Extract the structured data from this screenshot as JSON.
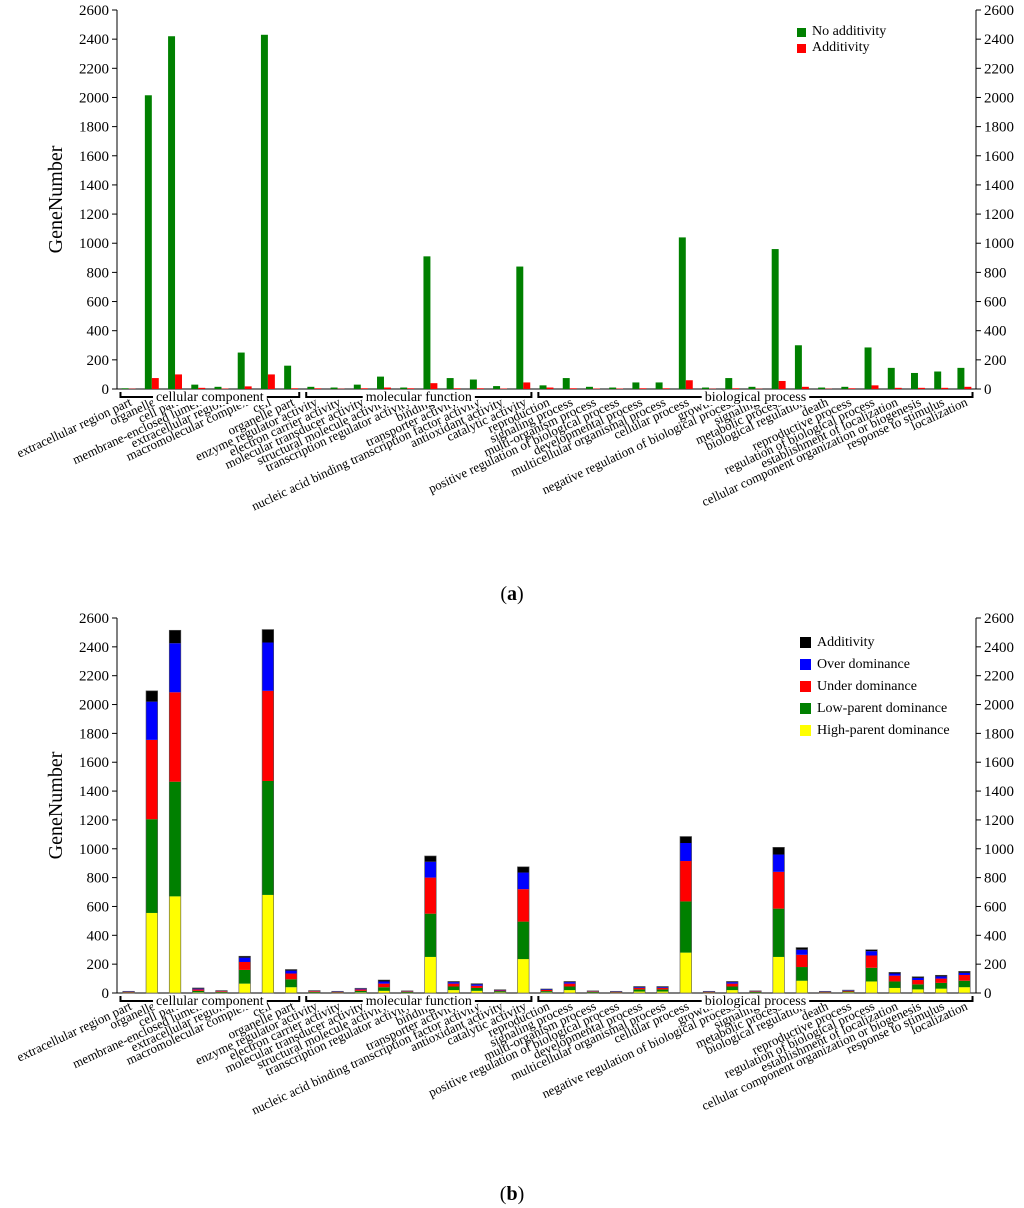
{
  "categories": [
    "extracellular region part",
    "organelle",
    "cell part",
    "membrane-enclosed lumen",
    "extracellular region",
    "macromolecular complex",
    "cell",
    "organelle part",
    "enzyme regulator activity",
    "electron carrier activity",
    "molecular transducer activity",
    "structural molecule activity",
    "transcription regulator activity",
    "binding",
    "transporter activity",
    "nucleic acid binding transcription factor activity",
    "antioxidant activity",
    "catalytic activity",
    "reproduction",
    "signaling process",
    "multi-organism process",
    "positive regulation of biological process",
    "developmental process",
    "multicellular organismal process",
    "cellular process",
    "growth",
    "negative regulation of biological process",
    "signaling",
    "metabolic process",
    "biological regulation",
    "death",
    "reproductive process",
    "regulation of biological process",
    "establishment of localization",
    "cellular component organization or biogenesis",
    "response to stimulus",
    "localization"
  ],
  "groups": [
    {
      "label": "cellular component",
      "start": 0,
      "end": 7
    },
    {
      "label": "molecular function",
      "start": 8,
      "end": 17
    },
    {
      "label": "biological process",
      "start": 18,
      "end": 36
    }
  ],
  "chart_data": [
    {
      "type": "bar",
      "panel": "a",
      "caption_letter": "a",
      "ylabel": "GeneNumber",
      "ylim": [
        0,
        2600
      ],
      "yticks": [
        0,
        200,
        400,
        600,
        800,
        1000,
        1200,
        1400,
        1600,
        1800,
        2000,
        2200,
        2400,
        2600
      ],
      "legend_position": "top-right",
      "series": [
        {
          "name": "No additivity",
          "color": "#008000",
          "values": [
            5,
            2015,
            2420,
            30,
            15,
            250,
            2430,
            160,
            15,
            10,
            30,
            85,
            10,
            910,
            75,
            65,
            20,
            840,
            25,
            75,
            15,
            10,
            45,
            45,
            1040,
            10,
            75,
            15,
            960,
            300,
            10,
            15,
            285,
            145,
            110,
            120,
            145
          ]
        },
        {
          "name": "Additivity",
          "color": "#ff0000",
          "values": [
            2,
            75,
            100,
            8,
            3,
            18,
            100,
            5,
            5,
            2,
            5,
            10,
            5,
            40,
            5,
            5,
            3,
            45,
            10,
            5,
            3,
            3,
            5,
            5,
            60,
            2,
            5,
            2,
            55,
            15,
            2,
            5,
            25,
            8,
            8,
            8,
            15
          ]
        }
      ]
    },
    {
      "type": "bar",
      "stacked": true,
      "panel": "b",
      "caption_letter": "b",
      "ylabel": "GeneNumber",
      "ylim": [
        0,
        2600
      ],
      "yticks": [
        0,
        200,
        400,
        600,
        800,
        1000,
        1200,
        1400,
        1600,
        1800,
        2000,
        2200,
        2400,
        2600
      ],
      "legend_position": "top-right",
      "legend_order": [
        "Additivity",
        "Over dominance",
        "Under dominance",
        "Low-parent dominance",
        "High-parent dominance"
      ],
      "series": [
        {
          "name": "High-parent dominance",
          "color": "#ffff00",
          "values": [
            2,
            555,
            670,
            5,
            3,
            65,
            680,
            40,
            3,
            2,
            5,
            15,
            3,
            250,
            20,
            15,
            5,
            235,
            5,
            20,
            3,
            2,
            10,
            10,
            280,
            2,
            20,
            3,
            250,
            85,
            2,
            5,
            80,
            35,
            25,
            30,
            40
          ]
        },
        {
          "name": "Low-parent dominance",
          "color": "#008000",
          "values": [
            3,
            650,
            795,
            10,
            5,
            95,
            790,
            55,
            5,
            3,
            10,
            25,
            5,
            300,
            25,
            20,
            8,
            260,
            8,
            25,
            5,
            3,
            15,
            15,
            355,
            3,
            25,
            5,
            335,
            95,
            3,
            5,
            95,
            45,
            35,
            40,
            45
          ]
        },
        {
          "name": "Under dominance",
          "color": "#ff0000",
          "values": [
            3,
            550,
            620,
            10,
            5,
            55,
            625,
            40,
            5,
            3,
            10,
            25,
            3,
            250,
            20,
            15,
            5,
            225,
            8,
            20,
            3,
            3,
            10,
            10,
            280,
            3,
            20,
            3,
            255,
            85,
            3,
            5,
            85,
            40,
            30,
            30,
            40
          ]
        },
        {
          "name": "Over dominance",
          "color": "#0000ff",
          "values": [
            2,
            265,
            340,
            5,
            2,
            30,
            335,
            20,
            2,
            2,
            5,
            15,
            2,
            110,
            10,
            10,
            3,
            115,
            4,
            10,
            2,
            2,
            5,
            5,
            125,
            2,
            10,
            2,
            120,
            35,
            2,
            3,
            30,
            15,
            15,
            15,
            15
          ]
        },
        {
          "name": "Additivity",
          "color": "#000000",
          "values": [
            2,
            75,
            90,
            5,
            2,
            10,
            90,
            8,
            2,
            2,
            3,
            10,
            2,
            40,
            5,
            5,
            2,
            40,
            3,
            5,
            2,
            2,
            5,
            5,
            45,
            2,
            5,
            2,
            50,
            15,
            2,
            2,
            10,
            8,
            8,
            8,
            10
          ]
        }
      ]
    }
  ]
}
